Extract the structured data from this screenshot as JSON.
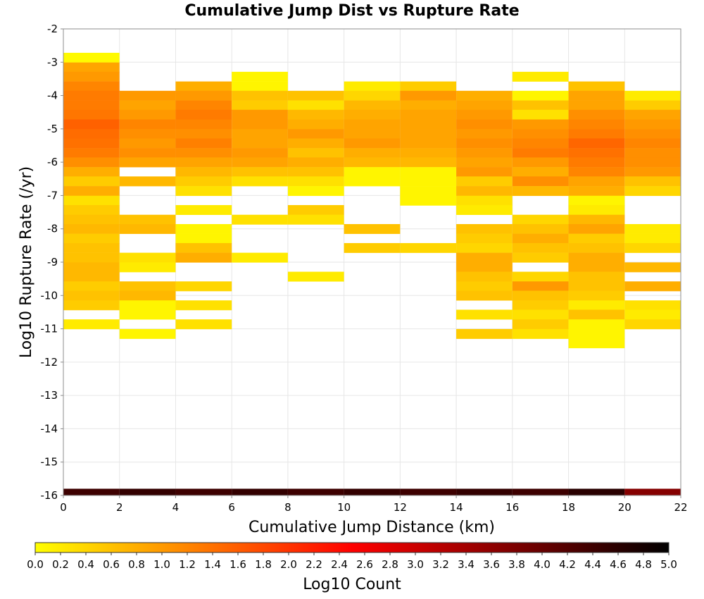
{
  "chart_data": {
    "type": "heatmap",
    "title": "Cumulative Jump Dist vs Rupture Rate",
    "xlabel": "Cumulative Jump Distance (km)",
    "ylabel": "Log10 Rupture Rate (/yr)",
    "colorbar_label": "Log10 Count",
    "xlim": [
      0,
      22
    ],
    "ylim": [
      -16,
      -2
    ],
    "x_ticks": [
      "0",
      "2",
      "4",
      "6",
      "8",
      "10",
      "12",
      "14",
      "16",
      "18",
      "20",
      "22"
    ],
    "y_ticks": [
      "-2",
      "-3",
      "-4",
      "-5",
      "-6",
      "-7",
      "-8",
      "-9",
      "-10",
      "-11",
      "-12",
      "-13",
      "-14",
      "-15",
      "-16"
    ],
    "colorbar_range": [
      0,
      5
    ],
    "colorbar_ticks": [
      "0.0",
      "0.2",
      "0.4",
      "0.6",
      "0.8",
      "1.0",
      "1.2",
      "1.4",
      "1.6",
      "1.8",
      "2.0",
      "2.2",
      "2.4",
      "2.6",
      "2.8",
      "3.0",
      "3.2",
      "3.4",
      "3.6",
      "3.8",
      "4.0",
      "4.2",
      "4.4",
      "4.6",
      "4.8",
      "5.0"
    ],
    "colormap": [
      "#ffff00",
      "#ff8000",
      "#ff0000",
      "#800000",
      "#000000"
    ],
    "grid": true,
    "x_bin_width": 2,
    "y_bin_height": 0.285,
    "columns": [
      {
        "x": 0,
        "cells": [
          [
            -2.86,
            0.05
          ],
          [
            -3.15,
            0.9
          ],
          [
            -3.43,
            1.0
          ],
          [
            -3.72,
            1.2
          ],
          [
            -4.0,
            1.3
          ],
          [
            -4.29,
            1.3
          ],
          [
            -4.57,
            1.35
          ],
          [
            -4.86,
            1.55
          ],
          [
            -5.15,
            1.45
          ],
          [
            -5.43,
            1.4
          ],
          [
            -5.72,
            1.3
          ],
          [
            -6.0,
            1.1
          ],
          [
            -6.29,
            0.8
          ],
          [
            -6.57,
            0.5
          ],
          [
            -6.86,
            0.8
          ],
          [
            -7.15,
            0.3
          ],
          [
            -7.43,
            0.5
          ],
          [
            -7.72,
            0.6
          ],
          [
            -8.0,
            0.7
          ],
          [
            -8.29,
            0.5
          ],
          [
            -8.57,
            0.6
          ],
          [
            -8.86,
            0.6
          ],
          [
            -9.15,
            0.7
          ],
          [
            -9.43,
            0.7
          ],
          [
            -9.72,
            0.5
          ],
          [
            -10.0,
            0.6
          ],
          [
            -10.29,
            0.5
          ],
          [
            -10.86,
            0.2
          ]
        ]
      },
      {
        "x": 2,
        "cells": [
          [
            -4.0,
            1.0
          ],
          [
            -4.29,
            0.9
          ],
          [
            -4.57,
            1.0
          ],
          [
            -4.86,
            1.2
          ],
          [
            -5.15,
            1.1
          ],
          [
            -5.43,
            1.0
          ],
          [
            -5.72,
            1.1
          ],
          [
            -6.0,
            0.9
          ],
          [
            -6.57,
            0.7
          ],
          [
            -7.72,
            0.6
          ],
          [
            -8.0,
            0.7
          ],
          [
            -8.86,
            0.3
          ],
          [
            -9.15,
            0.2
          ],
          [
            -9.72,
            0.6
          ],
          [
            -10.0,
            0.7
          ],
          [
            -10.29,
            0.1
          ],
          [
            -10.57,
            0.1
          ],
          [
            -11.15,
            0.1
          ]
        ]
      },
      {
        "x": 4,
        "cells": [
          [
            -3.72,
            0.8
          ],
          [
            -4.0,
            1.0
          ],
          [
            -4.29,
            1.2
          ],
          [
            -4.57,
            1.3
          ],
          [
            -4.86,
            1.2
          ],
          [
            -5.15,
            1.1
          ],
          [
            -5.43,
            1.25
          ],
          [
            -5.72,
            1.1
          ],
          [
            -6.0,
            0.9
          ],
          [
            -6.29,
            0.7
          ],
          [
            -6.57,
            0.5
          ],
          [
            -6.86,
            0.3
          ],
          [
            -7.43,
            0.2
          ],
          [
            -8.0,
            0.1
          ],
          [
            -8.29,
            0.1
          ],
          [
            -8.57,
            0.6
          ],
          [
            -8.86,
            0.8
          ],
          [
            -9.72,
            0.4
          ],
          [
            -10.29,
            0.3
          ],
          [
            -10.86,
            0.3
          ]
        ]
      },
      {
        "x": 6,
        "cells": [
          [
            -3.43,
            0.1
          ],
          [
            -3.72,
            0.1
          ],
          [
            -4.0,
            0.6
          ],
          [
            -4.29,
            0.5
          ],
          [
            -4.57,
            1.0
          ],
          [
            -4.86,
            1.0
          ],
          [
            -5.15,
            0.9
          ],
          [
            -5.43,
            0.9
          ],
          [
            -5.72,
            1.0
          ],
          [
            -6.0,
            0.9
          ],
          [
            -6.29,
            0.6
          ],
          [
            -6.57,
            0.3
          ],
          [
            -7.72,
            0.3
          ],
          [
            -8.86,
            0.2
          ]
        ]
      },
      {
        "x": 8,
        "cells": [
          [
            -4.0,
            0.6
          ],
          [
            -4.29,
            0.3
          ],
          [
            -4.57,
            0.7
          ],
          [
            -4.86,
            0.8
          ],
          [
            -5.15,
            1.0
          ],
          [
            -5.43,
            0.8
          ],
          [
            -5.72,
            0.6
          ],
          [
            -6.0,
            0.8
          ],
          [
            -6.29,
            0.6
          ],
          [
            -6.57,
            0.3
          ],
          [
            -6.86,
            0.1
          ],
          [
            -7.43,
            0.5
          ],
          [
            -7.72,
            0.3
          ],
          [
            -9.43,
            0.2
          ]
        ]
      },
      {
        "x": 10,
        "cells": [
          [
            -3.72,
            0.2
          ],
          [
            -4.0,
            0.4
          ],
          [
            -4.29,
            0.7
          ],
          [
            -4.57,
            0.8
          ],
          [
            -4.86,
            0.9
          ],
          [
            -5.15,
            0.9
          ],
          [
            -5.43,
            1.0
          ],
          [
            -5.72,
            0.8
          ],
          [
            -6.0,
            0.7
          ],
          [
            -6.29,
            0.1
          ],
          [
            -6.57,
            0.1
          ],
          [
            -8.0,
            0.6
          ],
          [
            -8.57,
            0.5
          ]
        ]
      },
      {
        "x": 12,
        "cells": [
          [
            -3.72,
            0.5
          ],
          [
            -4.0,
            1.0
          ],
          [
            -4.29,
            0.8
          ],
          [
            -4.57,
            0.9
          ],
          [
            -4.86,
            0.9
          ],
          [
            -5.15,
            0.9
          ],
          [
            -5.43,
            0.9
          ],
          [
            -5.72,
            0.8
          ],
          [
            -6.0,
            0.7
          ],
          [
            -6.29,
            0.1
          ],
          [
            -6.57,
            0.1
          ],
          [
            -6.86,
            0.1
          ],
          [
            -7.15,
            0.1
          ],
          [
            -8.57,
            0.4
          ]
        ]
      },
      {
        "x": 14,
        "cells": [
          [
            -4.0,
            0.8
          ],
          [
            -4.29,
            0.9
          ],
          [
            -4.57,
            1.0
          ],
          [
            -4.86,
            1.1
          ],
          [
            -5.15,
            1.0
          ],
          [
            -5.43,
            1.1
          ],
          [
            -5.72,
            1.0
          ],
          [
            -6.0,
            0.9
          ],
          [
            -6.29,
            1.0
          ],
          [
            -6.57,
            0.5
          ],
          [
            -6.86,
            0.7
          ],
          [
            -7.15,
            0.3
          ],
          [
            -7.43,
            0.2
          ],
          [
            -8.0,
            0.6
          ],
          [
            -8.29,
            0.5
          ],
          [
            -8.57,
            0.4
          ],
          [
            -8.86,
            0.8
          ],
          [
            -9.15,
            0.8
          ],
          [
            -9.43,
            0.6
          ],
          [
            -9.72,
            0.5
          ],
          [
            -10.0,
            0.6
          ],
          [
            -10.57,
            0.3
          ],
          [
            -11.15,
            0.5
          ]
        ]
      },
      {
        "x": 16,
        "cells": [
          [
            -3.43,
            0.2
          ],
          [
            -4.0,
            0.1
          ],
          [
            -4.29,
            0.6
          ],
          [
            -4.57,
            0.3
          ],
          [
            -4.86,
            1.0
          ],
          [
            -5.15,
            1.1
          ],
          [
            -5.43,
            1.2
          ],
          [
            -5.72,
            1.3
          ],
          [
            -6.0,
            1.0
          ],
          [
            -6.29,
            0.8
          ],
          [
            -6.57,
            1.1
          ],
          [
            -6.86,
            0.7
          ],
          [
            -7.72,
            0.4
          ],
          [
            -8.0,
            0.6
          ],
          [
            -8.29,
            0.8
          ],
          [
            -8.57,
            0.6
          ],
          [
            -8.86,
            0.5
          ],
          [
            -9.43,
            0.4
          ],
          [
            -9.72,
            1.0
          ],
          [
            -10.0,
            0.6
          ],
          [
            -10.29,
            0.5
          ],
          [
            -10.57,
            0.3
          ],
          [
            -10.86,
            0.5
          ],
          [
            -11.15,
            0.3
          ]
        ]
      },
      {
        "x": 18,
        "cells": [
          [
            -3.72,
            0.6
          ],
          [
            -4.0,
            0.9
          ],
          [
            -4.29,
            0.9
          ],
          [
            -4.57,
            1.1
          ],
          [
            -4.86,
            1.2
          ],
          [
            -5.15,
            1.3
          ],
          [
            -5.43,
            1.5
          ],
          [
            -5.72,
            1.4
          ],
          [
            -6.0,
            1.3
          ],
          [
            -6.29,
            1.2
          ],
          [
            -6.57,
            0.9
          ],
          [
            -6.86,
            0.8
          ],
          [
            -7.15,
            0.1
          ],
          [
            -7.43,
            0.2
          ],
          [
            -7.72,
            0.7
          ],
          [
            -8.0,
            0.9
          ],
          [
            -8.29,
            0.5
          ],
          [
            -8.57,
            0.6
          ],
          [
            -8.86,
            0.8
          ],
          [
            -9.15,
            0.8
          ],
          [
            -9.43,
            0.6
          ],
          [
            -9.72,
            0.6
          ],
          [
            -10.0,
            0.5
          ],
          [
            -10.29,
            0.2
          ],
          [
            -10.57,
            0.6
          ],
          [
            -10.86,
            0.1
          ],
          [
            -11.15,
            0.1
          ],
          [
            -11.43,
            0.1
          ]
        ]
      },
      {
        "x": 20,
        "cells": [
          [
            -4.0,
            0.2
          ],
          [
            -4.29,
            0.5
          ],
          [
            -4.57,
            0.9
          ],
          [
            -4.86,
            1.0
          ],
          [
            -5.15,
            1.1
          ],
          [
            -5.43,
            1.2
          ],
          [
            -5.72,
            1.1
          ],
          [
            -6.0,
            1.1
          ],
          [
            -6.29,
            1.0
          ],
          [
            -6.57,
            0.6
          ],
          [
            -6.86,
            0.4
          ],
          [
            -8.0,
            0.2
          ],
          [
            -8.29,
            0.2
          ],
          [
            -8.57,
            0.4
          ],
          [
            -9.15,
            0.7
          ],
          [
            -9.72,
            0.8
          ],
          [
            -10.29,
            0.3
          ],
          [
            -10.57,
            0.2
          ],
          [
            -10.86,
            0.4
          ]
        ]
      }
    ],
    "bottom_row": {
      "y": -16,
      "height": 0.2,
      "values": [
        4.4,
        4.5,
        4.4,
        4.5,
        4.4,
        4.5,
        4.4,
        4.5,
        4.4,
        4.6,
        3.7
      ]
    }
  }
}
